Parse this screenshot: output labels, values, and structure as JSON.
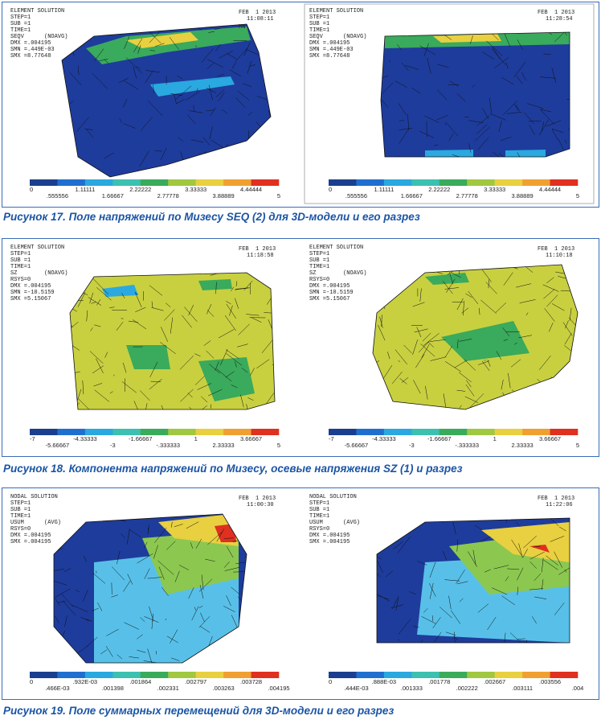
{
  "figures": [
    {
      "panels": [
        {
          "header": [
            "ELEMENT SOLUTION",
            "STEP=1",
            "SUB =1",
            "TIME=1",
            "SEQV      (NOAVG)",
            "DMX =.004195",
            "SMN =.449E-03",
            "SMX =8.77648"
          ],
          "date": "FEB  1 2013",
          "time": "11:08:11",
          "marker": "MN",
          "colorbar": {
            "top": [
              "0",
              "1.11111",
              "2.22222",
              "3.33333",
              "4.44444"
            ],
            "bottom": [
              ".555556",
              "1.66667",
              "2.77778",
              "3.88889",
              "5"
            ]
          }
        },
        {
          "header": [
            "ELEMENT SOLUTION",
            "STEP=1",
            "SUB =1",
            "TIME=1",
            "SEQV      (NOAVG)",
            "DMX =.004195",
            "SMN =.449E-03",
            "SMX =8.77648"
          ],
          "date": "FEB  1 2013",
          "time": "11:28:54",
          "colorbar": {
            "top": [
              "0",
              "1.11111",
              "2.22222",
              "3.33333",
              "4.44444"
            ],
            "bottom": [
              ".555556",
              "1.66667",
              "2.77778",
              "3.88889",
              "5"
            ]
          }
        }
      ],
      "caption": "Рисунок 17. Поле напряжений по Мизесу SEQ (2) для 3D-модели и его разрез"
    },
    {
      "panels": [
        {
          "header": [
            "ELEMENT SOLUTION",
            "STEP=1",
            "SUB =1",
            "TIME=1",
            "SZ        (NOAVG)",
            "RSYS=0",
            "DMX =.004195",
            "SMN =-10.5159",
            "SMX =5.15067"
          ],
          "date": "FEB  1 2013",
          "time": "11:18:58",
          "colorbar": {
            "top": [
              "-7",
              "-4.33333",
              "-1.66667",
              "1",
              "3.66667"
            ],
            "bottom": [
              "-5.66667",
              "-3",
              "-.333333",
              "2.33333",
              "5"
            ]
          }
        },
        {
          "header": [
            "ELEMENT SOLUTION",
            "STEP=1",
            "SUB =1",
            "TIME=1",
            "SZ        (NOAVG)",
            "RSYS=0",
            "DMX =.004195",
            "SMN =-10.5159",
            "SMX =5.15067"
          ],
          "date": "FEB  1 2013",
          "time": "11:10:18",
          "colorbar": {
            "top": [
              "-7",
              "-4.33333",
              "-1.66667",
              "1",
              "3.66667"
            ],
            "bottom": [
              "-5.66667",
              "-3",
              "-.333333",
              "2.33333",
              "5"
            ]
          }
        }
      ],
      "caption": "Рисунок 18. Компонента напряжений по Мизесу, осевые напряжения SZ (1) и разрез"
    },
    {
      "panels": [
        {
          "header": [
            "NODAL SOLUTION",
            "STEP=1",
            "SUB =1",
            "TIME=1",
            "USUM      (AVG)",
            "RSYS=0",
            "DMX =.004195",
            "SMX =.004195"
          ],
          "date": "FEB  1 2013",
          "time": "11:00:30",
          "colorbar": {
            "top": [
              "0",
              ".932E-03",
              ".001864",
              ".002797",
              ".003728"
            ],
            "bottom": [
              ".466E-03",
              ".001398",
              ".002331",
              ".003263",
              ".004195"
            ]
          }
        },
        {
          "header": [
            "NODAL SOLUTION",
            "STEP=1",
            "SUB =1",
            "TIME=1",
            "USUM      (AVG)",
            "RSYS=0",
            "DMX =.004195",
            "SMX =.004195"
          ],
          "date": "FEB  1 2013",
          "time": "11:22:06",
          "colorbar": {
            "top": [
              "0",
              ".888E-03",
              ".001778",
              ".002667",
              ".003556"
            ],
            "bottom": [
              ".444E-03",
              ".001333",
              ".002222",
              ".003111",
              ".004"
            ]
          }
        }
      ],
      "caption": "Рисунок 19. Поле суммарных перемещений для 3D-модели и его разрез"
    }
  ]
}
